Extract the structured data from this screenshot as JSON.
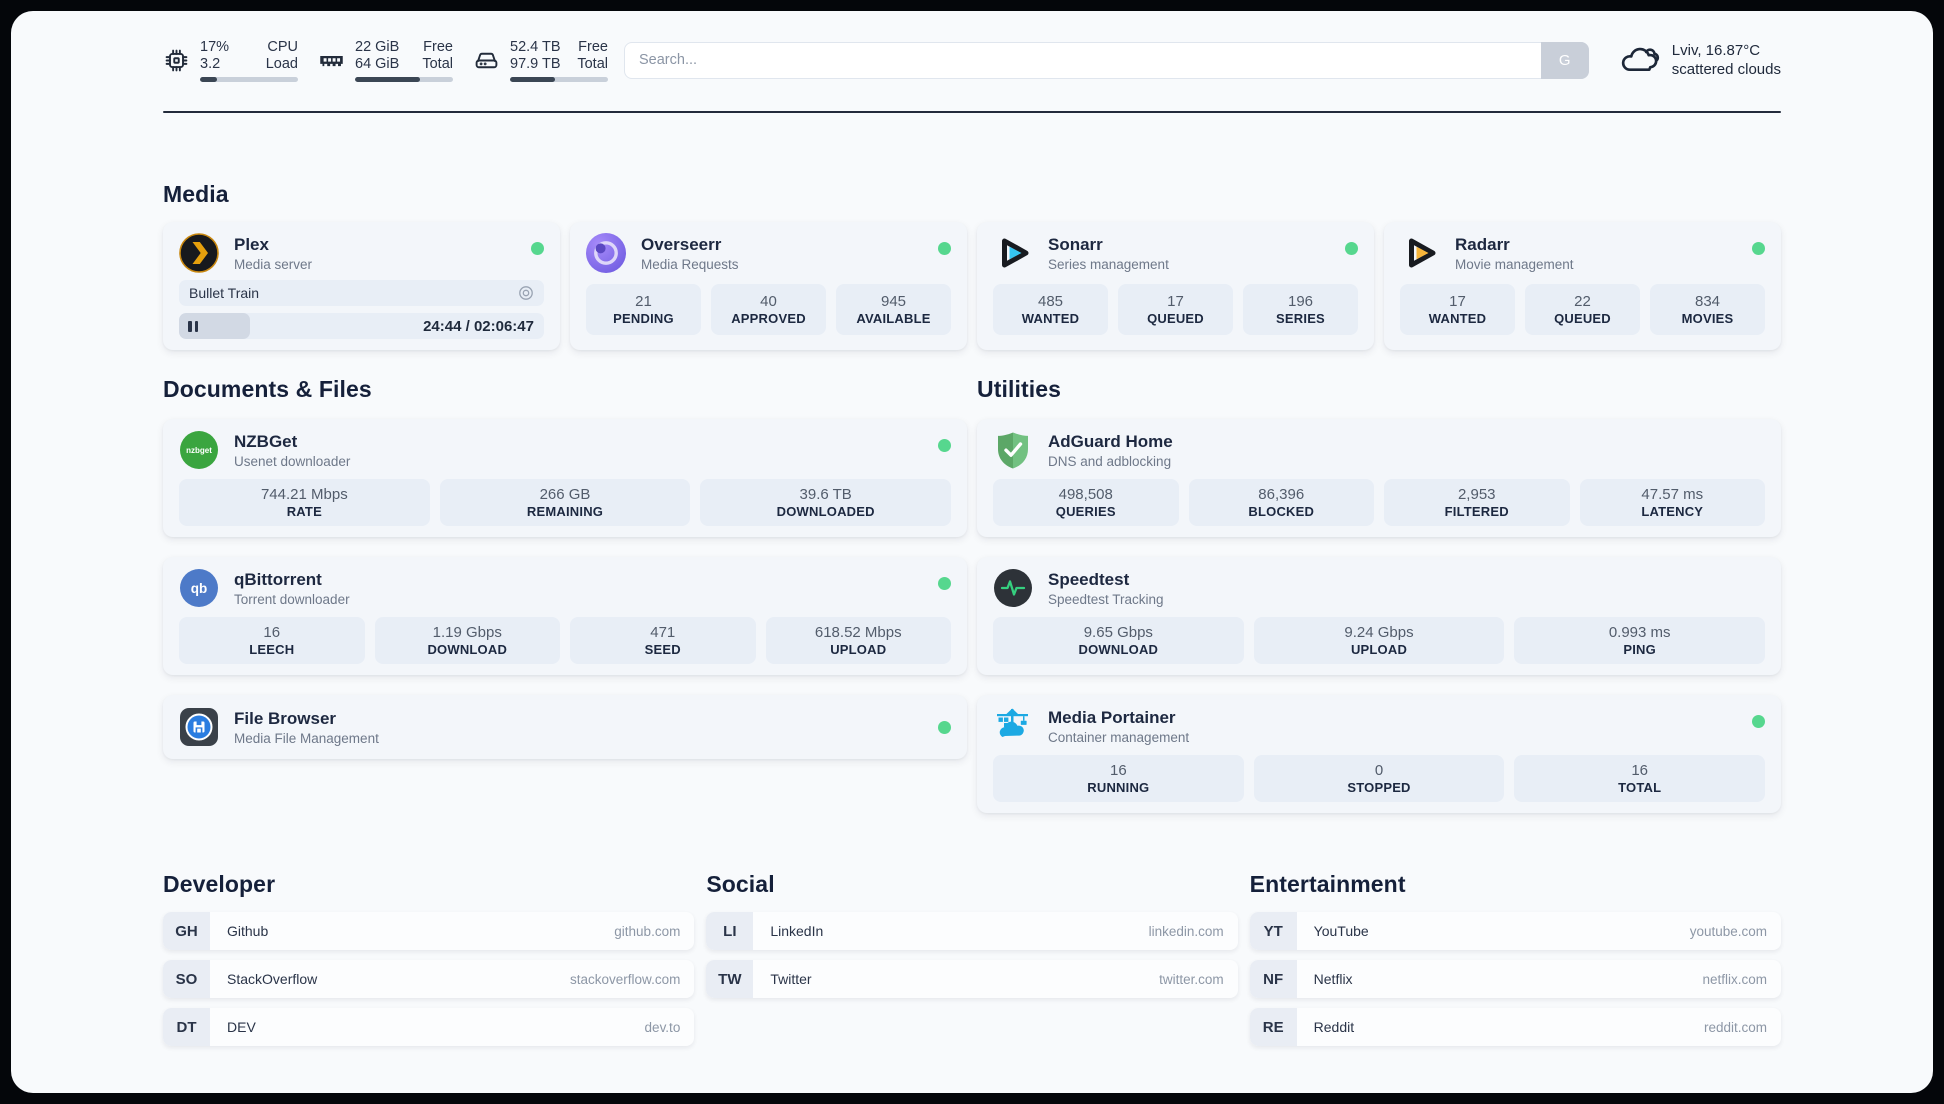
{
  "header": {
    "system_stats": [
      {
        "icon": "cpu-icon",
        "value_top": "17%",
        "value_bottom": "3.2",
        "label_top": "CPU",
        "label_bottom": "Load",
        "progress_pct": 17
      },
      {
        "icon": "ram-icon",
        "value_top": "22 GiB",
        "value_bottom": "64 GiB",
        "label_top": "Free",
        "label_bottom": "Total",
        "progress_pct": 66
      },
      {
        "icon": "disk-icon",
        "value_top": "52.4 TB",
        "value_bottom": "97.9 TB",
        "label_top": "Free",
        "label_bottom": "Total",
        "progress_pct": 46
      }
    ],
    "search": {
      "placeholder": "Search...",
      "button_label": "G"
    },
    "weather": {
      "summary": "Lviv, 16.87°C",
      "condition": "scattered clouds"
    }
  },
  "media": {
    "title": "Media",
    "plex": {
      "name": "Plex",
      "description": "Media server",
      "online": true,
      "now_playing": "Bullet Train",
      "time_display": "24:44 / 02:06:47",
      "progress_pct": 19.5
    },
    "overseerr": {
      "name": "Overseerr",
      "description": "Media Requests",
      "online": true,
      "stats": [
        {
          "value": "21",
          "label": "PENDING"
        },
        {
          "value": "40",
          "label": "APPROVED"
        },
        {
          "value": "945",
          "label": "AVAILABLE"
        }
      ]
    },
    "sonarr": {
      "name": "Sonarr",
      "description": "Series management",
      "online": true,
      "stats": [
        {
          "value": "485",
          "label": "WANTED"
        },
        {
          "value": "17",
          "label": "QUEUED"
        },
        {
          "value": "196",
          "label": "SERIES"
        }
      ]
    },
    "radarr": {
      "name": "Radarr",
      "description": "Movie management",
      "online": true,
      "stats": [
        {
          "value": "17",
          "label": "WANTED"
        },
        {
          "value": "22",
          "label": "QUEUED"
        },
        {
          "value": "834",
          "label": "MOVIES"
        }
      ]
    }
  },
  "documents": {
    "title": "Documents & Files",
    "nzbget": {
      "name": "NZBGet",
      "description": "Usenet downloader",
      "online": true,
      "icon_text": "nzbget",
      "stats": [
        {
          "value": "744.21 Mbps",
          "label": "RATE"
        },
        {
          "value": "266 GB",
          "label": "REMAINING"
        },
        {
          "value": "39.6 TB",
          "label": "DOWNLOADED"
        }
      ]
    },
    "qbittorrent": {
      "name": "qBittorrent",
      "description": "Torrent downloader",
      "online": true,
      "icon_text": "qb",
      "stats": [
        {
          "value": "16",
          "label": "LEECH"
        },
        {
          "value": "1.19 Gbps",
          "label": "DOWNLOAD"
        },
        {
          "value": "471",
          "label": "SEED"
        },
        {
          "value": "618.52 Mbps",
          "label": "UPLOAD"
        }
      ]
    },
    "filebrowser": {
      "name": "File Browser",
      "description": "Media File Management",
      "online": true
    }
  },
  "utilities": {
    "title": "Utilities",
    "adguard": {
      "name": "AdGuard Home",
      "description": "DNS and adblocking",
      "stats": [
        {
          "value": "498,508",
          "label": "QUERIES"
        },
        {
          "value": "86,396",
          "label": "BLOCKED"
        },
        {
          "value": "2,953",
          "label": "FILTERED"
        },
        {
          "value": "47.57 ms",
          "label": "LATENCY"
        }
      ]
    },
    "speedtest": {
      "name": "Speedtest",
      "description": "Speedtest Tracking",
      "stats": [
        {
          "value": "9.65 Gbps",
          "label": "DOWNLOAD"
        },
        {
          "value": "9.24 Gbps",
          "label": "UPLOAD"
        },
        {
          "value": "0.993 ms",
          "label": "PING"
        }
      ]
    },
    "portainer": {
      "name": "Media Portainer",
      "description": "Container management",
      "online": true,
      "stats": [
        {
          "value": "16",
          "label": "RUNNING"
        },
        {
          "value": "0",
          "label": "STOPPED"
        },
        {
          "value": "16",
          "label": "TOTAL"
        }
      ]
    }
  },
  "link_sections": {
    "developer": {
      "title": "Developer",
      "links": [
        {
          "abbr": "GH",
          "name": "Github",
          "url": "github.com"
        },
        {
          "abbr": "SO",
          "name": "StackOverflow",
          "url": "stackoverflow.com"
        },
        {
          "abbr": "DT",
          "name": "DEV",
          "url": "dev.to"
        }
      ]
    },
    "social": {
      "title": "Social",
      "links": [
        {
          "abbr": "LI",
          "name": "LinkedIn",
          "url": "linkedin.com"
        },
        {
          "abbr": "TW",
          "name": "Twitter",
          "url": "twitter.com"
        }
      ]
    },
    "entertainment": {
      "title": "Entertainment",
      "links": [
        {
          "abbr": "YT",
          "name": "YouTube",
          "url": "youtube.com"
        },
        {
          "abbr": "NF",
          "name": "Netflix",
          "url": "netflix.com"
        },
        {
          "abbr": "RE",
          "name": "Reddit",
          "url": "reddit.com"
        }
      ]
    }
  },
  "colors": {
    "status_online": "#56d78e",
    "plex_accent": "#e5a00d",
    "sonarr_accent": "#35c5f1",
    "radarr_accent": "#f7b53a",
    "nzbget_accent": "#3aa53f",
    "qbittorrent_accent": "#4d7ac8",
    "adguard_accent": "#68b778",
    "speedtest_accent": "#35d07f",
    "portainer_accent": "#1ca9e3",
    "filebrowser_accent": "#2b7de0",
    "progress_fill": "#3b4654"
  }
}
